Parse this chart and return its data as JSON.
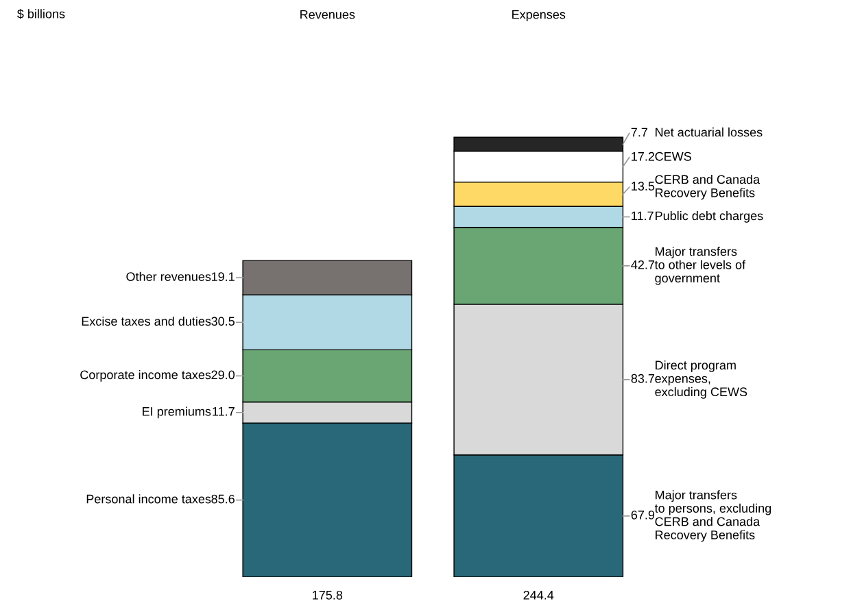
{
  "chart_data": {
    "type": "bar",
    "stacked": true,
    "annotations": [
      "$ billions"
    ],
    "categories": [
      "Revenues",
      "Expenses"
    ],
    "tick_labels": "x",
    "data_labels": true,
    "legend": false,
    "totals": [
      "175.8",
      "244.4"
    ],
    "series": [
      {
        "name": "Personal income taxes",
        "color": "#296879",
        "values": [
          85.6,
          null
        ]
      },
      {
        "name": "EI premiums",
        "color": "#d9d9d9",
        "values": [
          11.7,
          null
        ]
      },
      {
        "name": "Corporate income taxes",
        "color": "#6aa574",
        "values": [
          29.0,
          null
        ],
        "value_labels": [
          "29.0",
          null
        ]
      },
      {
        "name": "Excise taxes and duties",
        "color": "#b0d9e5",
        "values": [
          30.5,
          null
        ]
      },
      {
        "name": "Other revenues",
        "color": "#777170",
        "values": [
          19.1,
          null
        ]
      },
      {
        "name": "Major transfers\nto persons, excluding\nCERB and Canada\nRecovery Benefits",
        "color": "#296879",
        "values": [
          null,
          67.9
        ]
      },
      {
        "name": "Direct program\nexpenses,\nexcluding CEWS",
        "color": "#d9d9d9",
        "values": [
          null,
          83.7
        ]
      },
      {
        "name": "Major transfers\nto other levels of\ngovernment",
        "color": "#6aa574",
        "values": [
          null,
          42.7
        ]
      },
      {
        "name": "Public debt charges",
        "color": "#b0d9e5",
        "values": [
          null,
          11.7
        ]
      },
      {
        "name": "CERB and Canada\nRecovery Benefits",
        "color": "#ffd966",
        "values": [
          null,
          13.5
        ]
      },
      {
        "name": "CEWS",
        "color": "#ffffff",
        "values": [
          null,
          17.2
        ]
      },
      {
        "name": "Net actuarial losses",
        "color": "#262626",
        "values": [
          null,
          7.7
        ]
      }
    ]
  }
}
